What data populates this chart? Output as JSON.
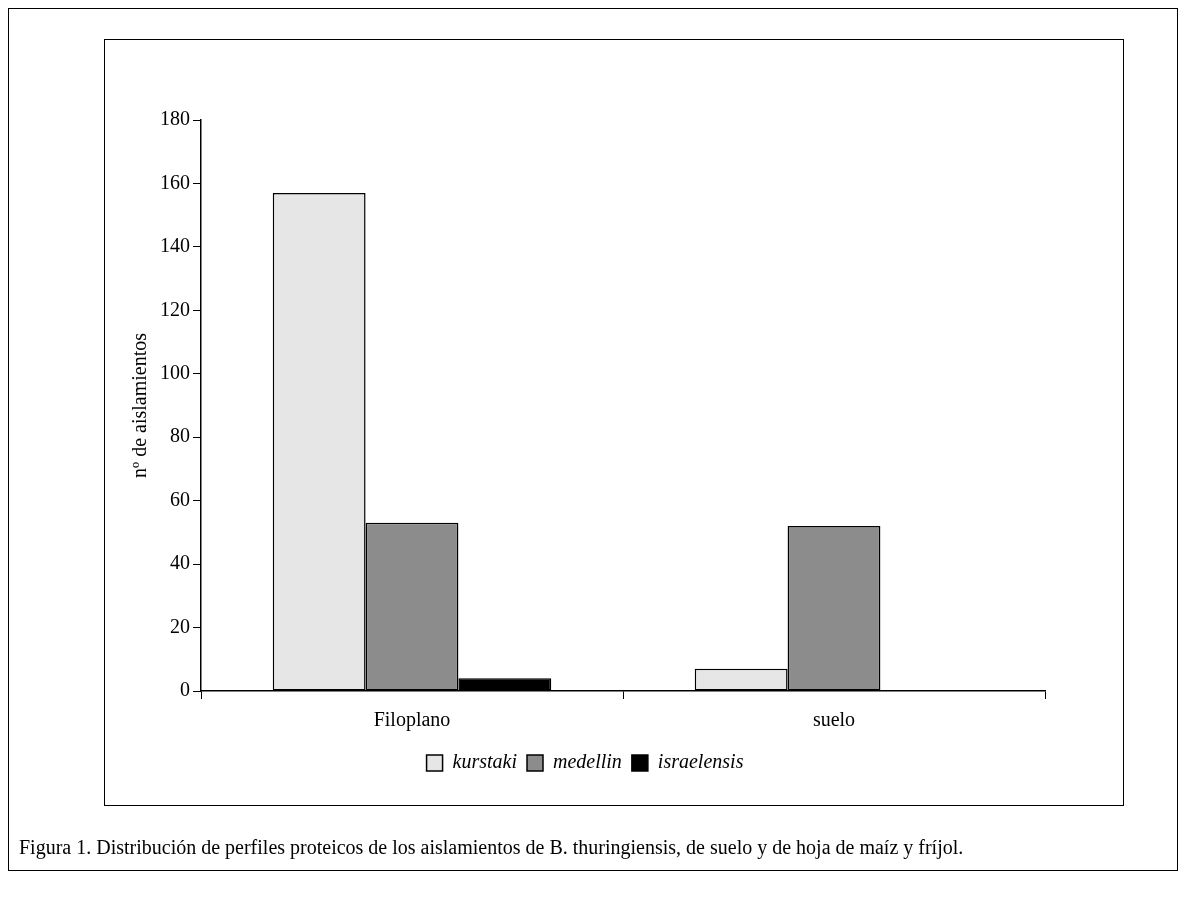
{
  "chart_data": {
    "type": "bar",
    "ylabel": "nº de aislamientos",
    "categories": [
      "Filoplano",
      "suelo"
    ],
    "series": [
      {
        "name": "kurstaki",
        "color": "#e6e6e6",
        "values": [
          157,
          7
        ]
      },
      {
        "name": "medellin",
        "color": "#8c8c8c",
        "values": [
          53,
          52
        ]
      },
      {
        "name": "israelensis",
        "color": "#000000",
        "values": [
          4,
          0
        ]
      }
    ],
    "ylim": [
      0,
      180
    ],
    "yticks": [
      0,
      20,
      40,
      60,
      80,
      100,
      120,
      140,
      160,
      180
    ],
    "grid": false,
    "legend": "bottom",
    "annotations": [
      "Figura 1. Distribución de perfiles proteicos de los aislamientos de B. thuringiensis, de suelo y de hoja de maíz y fríjol."
    ]
  }
}
